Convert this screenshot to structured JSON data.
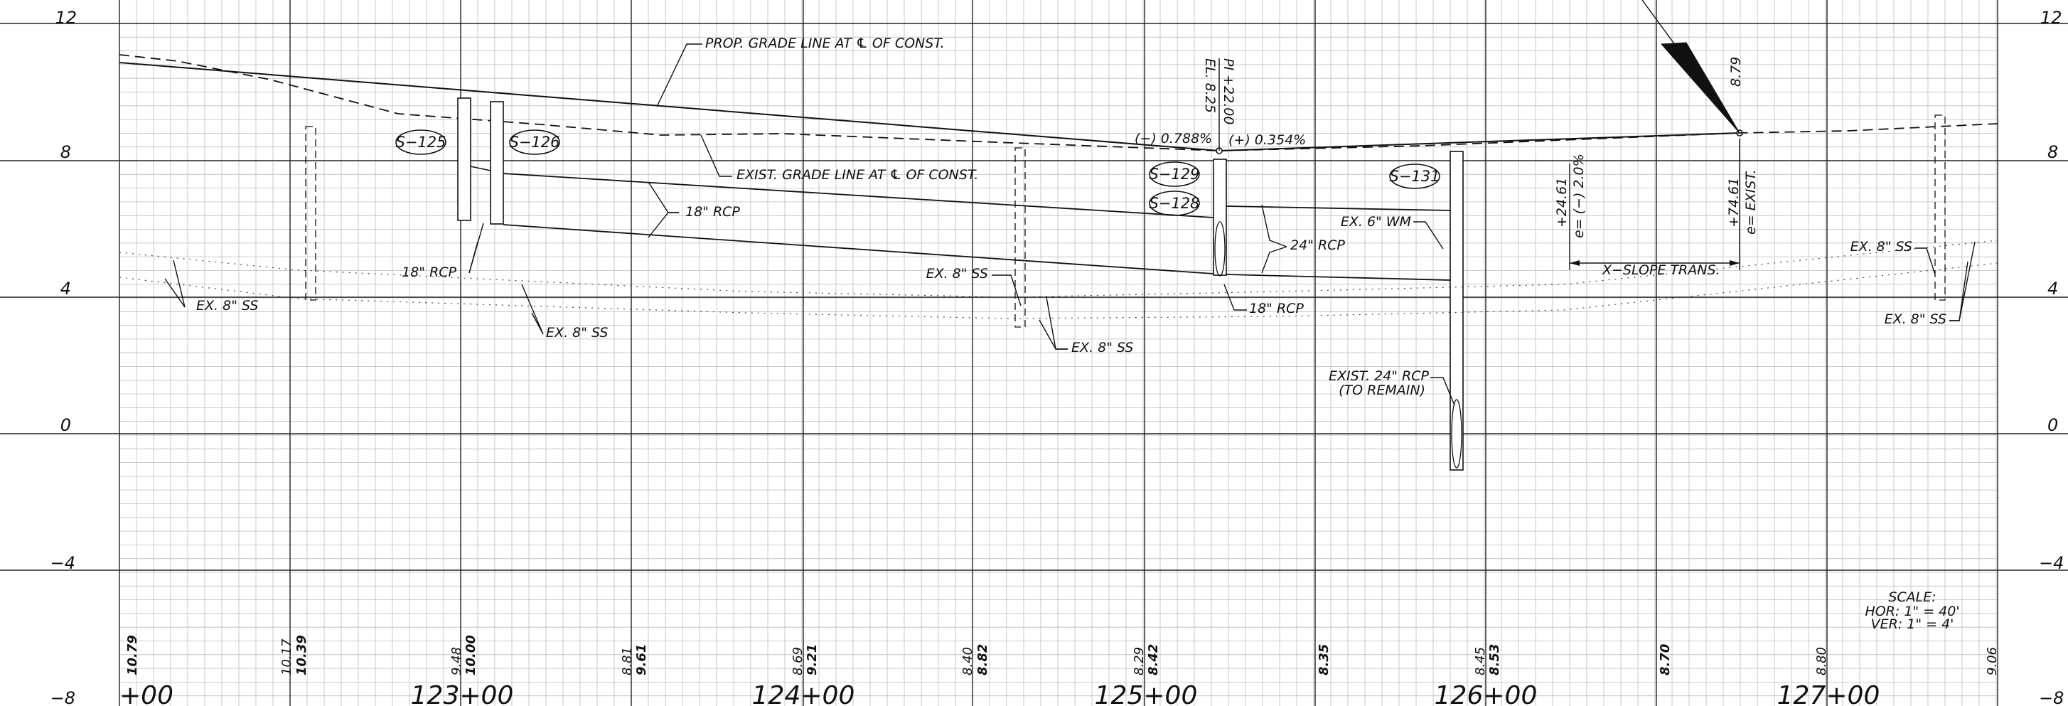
{
  "elevation_axis": {
    "left_labels": [
      "12",
      "8",
      "4",
      "0",
      "−4",
      "−8"
    ],
    "right_labels": [
      "12",
      "8",
      "4",
      "0",
      "−4",
      "−8"
    ]
  },
  "stations": {
    "labels": [
      "+00",
      "123+00",
      "124+00",
      "125+00",
      "126+00",
      "127+00"
    ]
  },
  "grade_notes": {
    "prop_grade_line": "PROP. GRADE LINE AT ℄ OF CONST.",
    "exist_grade_line": "EXIST. GRADE LINE AT ℄ OF CONST.",
    "pi_station": "PI +22.00",
    "pi_elevation": "EL. 8.25",
    "grade_in": "(−) 0.788%",
    "grade_out": "(+) 0.354%",
    "high_point_elev": "8.79"
  },
  "structures": {
    "s125": "S−125",
    "s126": "S−126",
    "s129": "S−129",
    "s128": "S−128",
    "s131": "S−131"
  },
  "pipe_callouts": {
    "rcp18_a": "18\" RCP",
    "rcp18_b": "18\" RCP",
    "rcp24": "24\" RCP",
    "rcp18_c": "18\" RCP",
    "ex_ss_1": "EX. 8\" SS",
    "ex_ss_2": "EX. 8\" SS",
    "ex_ss_3": "EX. 8\" SS",
    "ex_ss_4": "EX. 8\" SS",
    "ex_ss_5": "EX. 8\" SS",
    "ex_ss_6": "EX. 8\" SS",
    "ex_wm": "EX. 6\" WM",
    "exist_rcp_line1": "EXIST. 24\" RCP",
    "exist_rcp_line2": "(TO REMAIN)"
  },
  "superelevation": {
    "sta_a": "+24.61",
    "e_a": "e= (−) 2.0%",
    "sta_b": "+74.61",
    "e_b": "e= EXIST.",
    "xslope": "X−SLOPE TRANS."
  },
  "scale_note": {
    "title": "SCALE:",
    "hor": "HOR: 1\" = 40'",
    "ver": "VER: 1\" = 4'"
  },
  "bottom_elevations": [
    {
      "existing": "",
      "proposed": "10.79"
    },
    {
      "existing": "10.17",
      "proposed": "10.39"
    },
    {
      "existing": "9.48",
      "proposed": "10.00"
    },
    {
      "existing": "8.81",
      "proposed": "9.61"
    },
    {
      "existing": "8.69",
      "proposed": "9.21"
    },
    {
      "existing": "8.40",
      "proposed": "8.82"
    },
    {
      "existing": "8.29",
      "proposed": "8.42"
    },
    {
      "existing": "",
      "proposed": "8.35"
    },
    {
      "existing": "8.45",
      "proposed": "8.53"
    },
    {
      "existing": "",
      "proposed": "8.70"
    },
    {
      "existing": "8.80",
      "proposed": ""
    },
    {
      "existing": "9.06",
      "proposed": ""
    }
  ]
}
